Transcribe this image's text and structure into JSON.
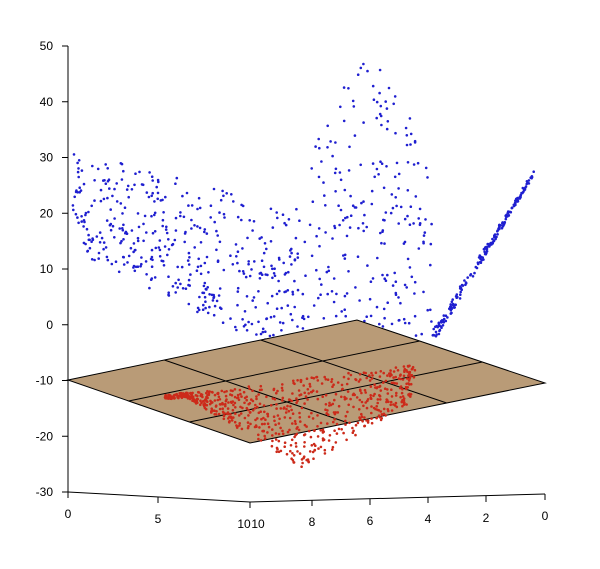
{
  "chart_data": {
    "type": "scatter",
    "title": "",
    "projection": "3d",
    "z_axis": {
      "range": [
        -30,
        50
      ],
      "ticks": [
        -30,
        -20,
        -10,
        0,
        10,
        20,
        30,
        40,
        50
      ]
    },
    "x_axis": {
      "range": [
        0,
        10
      ],
      "ticks": [
        "0",
        "5",
        "10"
      ]
    },
    "y_axis": {
      "range": [
        0,
        10
      ],
      "ticks": [
        "10",
        "8",
        "6",
        "4",
        "2",
        "0"
      ]
    },
    "plane": {
      "z": -10,
      "color": "#b99b77",
      "grid_divisions": 3
    },
    "series": [
      {
        "color": "#1f1fd0",
        "point_count": 900,
        "description_z_range": [
          -12,
          48
        ]
      },
      {
        "color": "#cc2a1a",
        "point_count": 700,
        "description_z_range": [
          -27,
          -10
        ]
      }
    ]
  }
}
